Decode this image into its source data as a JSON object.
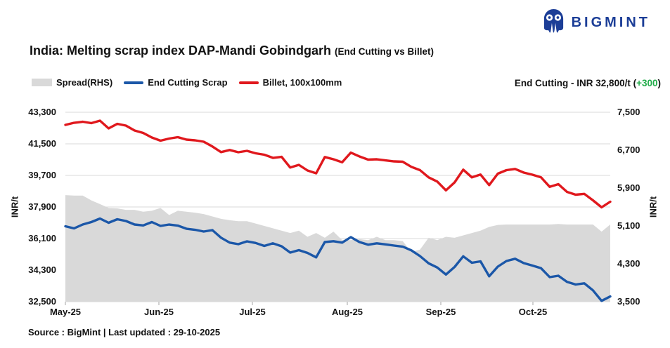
{
  "brand": {
    "name": "BIGMINT",
    "color": "#1c3e97"
  },
  "header": {
    "title": "India: Melting scrap index DAP-Mandi Gobindgarh",
    "title_suffix": "(End Cutting vs Billet)"
  },
  "price_label": {
    "prefix": "End Cutting - INR 32,800/t (",
    "change": "+300",
    "suffix": ")",
    "change_color": "#22ac4a"
  },
  "footer": {
    "source": "Source : BigMint | Last updated : 29-10-2025"
  },
  "chart_data": {
    "type": "line",
    "title": "India: Melting scrap index DAP-Mandi Gobindgarh (End Cutting vs Billet)",
    "grid": true,
    "legend_position": "top-left",
    "x_labels": [
      "May-25",
      "Jun-25",
      "Jul-25",
      "Aug-25",
      "Sep-25",
      "Oct-25"
    ],
    "left_axis": {
      "title": "INR/t",
      "min": 32500,
      "max": 43300,
      "tick_labels": [
        "43,300",
        "41,500",
        "39,700",
        "37,900",
        "36,100",
        "34,300",
        "32,500"
      ]
    },
    "right_axis": {
      "title": "INR/t",
      "min": 3500,
      "max": 7500,
      "tick_labels": [
        "7,500",
        "6,700",
        "5,900",
        "5,100",
        "4,300",
        "3,500"
      ]
    },
    "series": [
      {
        "name": "Spread(RHS)",
        "type": "area",
        "axis": "right",
        "color": "#d9d9d9",
        "values": [
          5750,
          5740,
          5740,
          5640,
          5560,
          5480,
          5470,
          5440,
          5440,
          5400,
          5420,
          5480,
          5330,
          5420,
          5400,
          5380,
          5350,
          5300,
          5250,
          5220,
          5200,
          5200,
          5150,
          5100,
          5050,
          5000,
          4950,
          5000,
          4870,
          4950,
          4850,
          4980,
          4800,
          4800,
          4820,
          4800,
          4870,
          4800,
          4800,
          4780,
          4550,
          4600,
          4850,
          4800,
          4870,
          4850,
          4900,
          4950,
          5000,
          5080,
          5120,
          5130,
          5130,
          5130,
          5130,
          5130,
          5130,
          5140,
          5130,
          5130,
          5130,
          5130,
          4980,
          5130
        ]
      },
      {
        "name": "End Cutting Scrap",
        "type": "line",
        "axis": "left",
        "color": "#1b57a8",
        "values": [
          36800,
          36680,
          36900,
          37040,
          37240,
          37000,
          37200,
          37100,
          36900,
          36850,
          37040,
          36820,
          36900,
          36840,
          36660,
          36600,
          36500,
          36580,
          36150,
          35870,
          35780,
          35940,
          35850,
          35680,
          35830,
          35660,
          35300,
          35440,
          35280,
          35030,
          35900,
          35950,
          35870,
          36180,
          35900,
          35750,
          35830,
          35770,
          35700,
          35640,
          35430,
          35100,
          34690,
          34450,
          34050,
          34480,
          35090,
          34720,
          34800,
          33950,
          34500,
          34820,
          34950,
          34700,
          34560,
          34410,
          33900,
          33980,
          33630,
          33480,
          33550,
          33150,
          32550,
          32800
        ]
      },
      {
        "name": "Billet, 100x100mm",
        "type": "line",
        "axis": "left",
        "color": "#e0181d",
        "values": [
          42580,
          42700,
          42760,
          42680,
          42820,
          42380,
          42640,
          42540,
          42260,
          42120,
          41860,
          41680,
          41800,
          41880,
          41740,
          41700,
          41620,
          41350,
          41030,
          41150,
          41020,
          41100,
          40960,
          40880,
          40700,
          40760,
          40150,
          40300,
          39980,
          39820,
          40750,
          40620,
          40450,
          41000,
          40780,
          40600,
          40620,
          40560,
          40500,
          40480,
          40190,
          40000,
          39590,
          39350,
          38850,
          39300,
          40030,
          39590,
          39750,
          39150,
          39800,
          40000,
          40070,
          39860,
          39740,
          39590,
          39050,
          39200,
          38760,
          38600,
          38650,
          38280,
          37880,
          38200
        ]
      }
    ]
  }
}
